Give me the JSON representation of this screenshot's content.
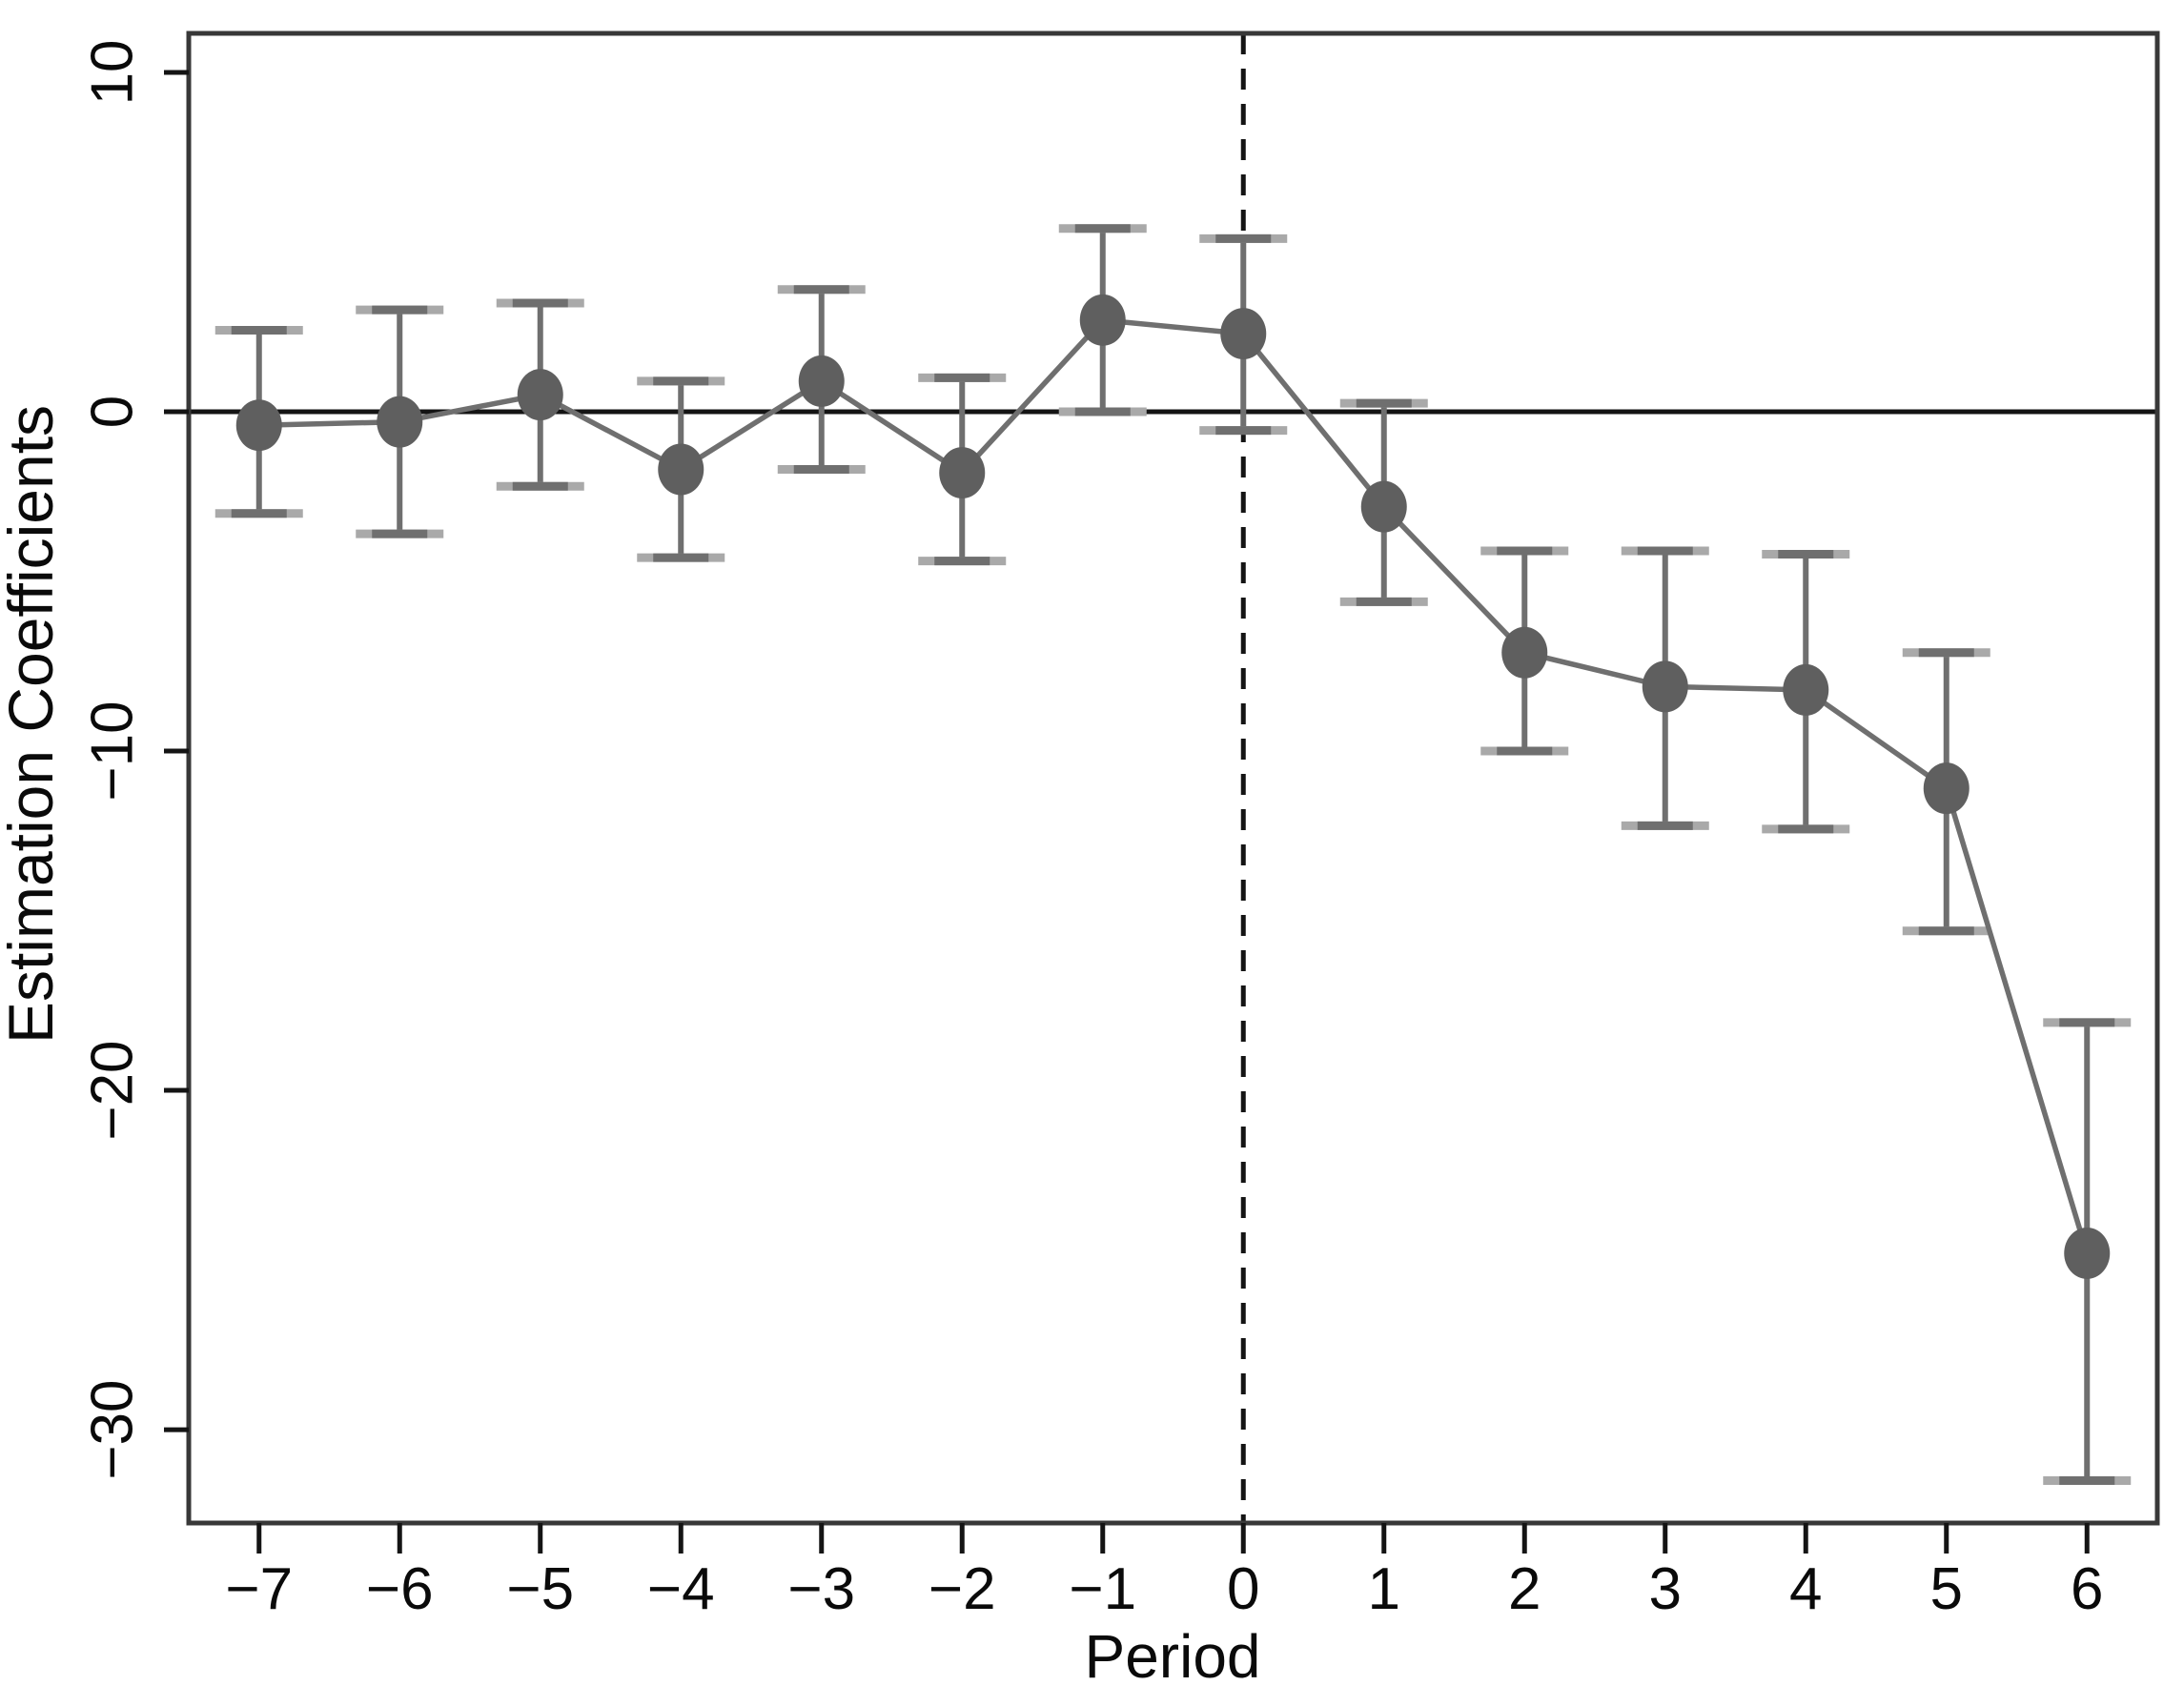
{
  "chart_data": {
    "type": "line",
    "title": "",
    "xlabel": "Period",
    "ylabel": "Estimation Coefficients",
    "x": [
      -7,
      -6,
      -5,
      -4,
      -3,
      -2,
      -1,
      0,
      1,
      2,
      3,
      4,
      5,
      6
    ],
    "x_tick_labels": [
      "−7",
      "−6",
      "−5",
      "−4",
      "−3",
      "−2",
      "−1",
      "0",
      "1",
      "2",
      "3",
      "4",
      "5",
      "6"
    ],
    "series": [
      {
        "name": "Estimation Coefficients",
        "values": [
          -0.4,
          -0.3,
          0.5,
          -1.7,
          0.9,
          -1.8,
          2.7,
          2.3,
          -2.8,
          -7.1,
          -8.1,
          -8.2,
          -11.1,
          -24.8
        ],
        "ci_high": [
          2.4,
          3.0,
          3.2,
          0.9,
          3.6,
          1.0,
          5.4,
          5.1,
          0.25,
          -4.1,
          -4.1,
          -4.2,
          -7.1,
          -18.0
        ],
        "ci_low": [
          -3.0,
          -3.6,
          -2.2,
          -4.3,
          -1.7,
          -4.4,
          0.0,
          -0.55,
          -5.6,
          -10.0,
          -12.2,
          -12.3,
          -15.3,
          -31.5
        ]
      }
    ],
    "y_ticks": [
      10,
      0,
      -10,
      -20,
      -30
    ],
    "y_tick_labels": [
      "10",
      "0",
      "−10",
      "−20",
      "−30"
    ],
    "xlim": [
      -7.5,
      6.5
    ],
    "ylim": [
      -32.75,
      11.15
    ],
    "grid": false,
    "legend": "none",
    "reference_lines": {
      "horizontal_solid_y": 0,
      "vertical_dashed_x": 0
    },
    "colors": {
      "series_line": "#6f6f6f",
      "marker": "#5f5f5f",
      "error_bar": "#6f6f6f",
      "error_cap_outer": "#a9a9a9",
      "axis": "#141414",
      "box": "#383838",
      "text": "#0a0a0a",
      "background": "#ffffff"
    }
  }
}
